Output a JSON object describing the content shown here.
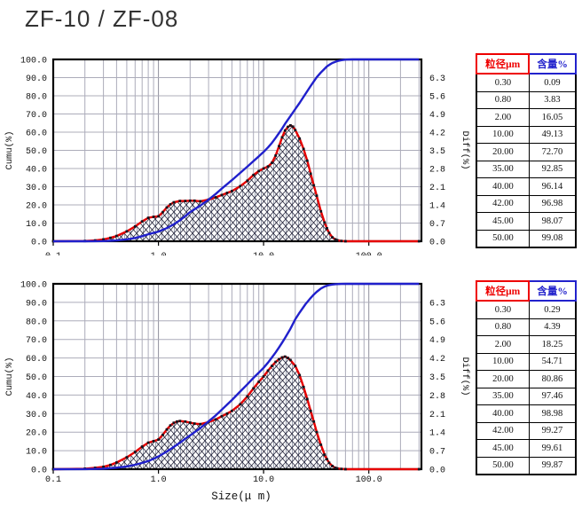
{
  "title": "ZF-10 / ZF-08",
  "shared_xlabel": "Size(μ m)",
  "chart_data": [
    {
      "type": "line",
      "sample": "ZF-10",
      "ylabel_left": "Cumu(%)",
      "ylabel_right": "Diff(%)",
      "x_scale": "log",
      "x_range": [
        0.1,
        316
      ],
      "x_tick_labels": [
        "0.1",
        "1.0",
        "10.0",
        "100.0"
      ],
      "x_tick_values": [
        0.1,
        1,
        10,
        100
      ],
      "y_left_range": [
        0,
        100
      ],
      "y_left_ticks": [
        "100.0",
        "90.0",
        "80.0",
        "70.0",
        "60.0",
        "50.0",
        "40.0",
        "30.0",
        "20.0",
        "10.0",
        "0.0"
      ],
      "y_right_range": [
        0,
        7
      ],
      "y_right_ticks": [
        "6.3",
        "5.6",
        "4.9",
        "4.2",
        "3.5",
        "2.8",
        "2.1",
        "1.4",
        "0.7",
        "0.0"
      ],
      "grid": true,
      "series": [
        {
          "name": "Cumu(%)",
          "axis": "left",
          "color": "#2020cc",
          "points": [
            [
              0.1,
              0
            ],
            [
              0.2,
              0.02
            ],
            [
              0.25,
              0.05
            ],
            [
              0.3,
              0.09
            ],
            [
              0.4,
              0.45
            ],
            [
              0.5,
              1.0
            ],
            [
              0.6,
              1.8
            ],
            [
              0.7,
              2.8
            ],
            [
              0.8,
              3.83
            ],
            [
              0.9,
              4.6
            ],
            [
              1.0,
              5.3
            ],
            [
              1.2,
              7.2
            ],
            [
              1.4,
              9.3
            ],
            [
              1.6,
              11.5
            ],
            [
              1.8,
              13.8
            ],
            [
              2.0,
              16.05
            ],
            [
              2.5,
              19.6
            ],
            [
              3,
              22.9
            ],
            [
              3.5,
              26
            ],
            [
              4,
              29
            ],
            [
              5,
              33.6
            ],
            [
              6,
              37.6
            ],
            [
              7,
              41
            ],
            [
              8,
              44.1
            ],
            [
              9,
              46.7
            ],
            [
              10,
              49.13
            ],
            [
              11,
              51.6
            ],
            [
              12,
              54.1
            ],
            [
              13,
              56.9
            ],
            [
              14,
              59.5
            ],
            [
              15,
              62
            ],
            [
              16,
              64.6
            ],
            [
              18,
              68.9
            ],
            [
              20,
              72.7
            ],
            [
              22,
              76.1
            ],
            [
              25,
              81
            ],
            [
              28,
              85.4
            ],
            [
              30,
              87.9
            ],
            [
              32,
              90.2
            ],
            [
              35,
              92.85
            ],
            [
              38,
              94.9
            ],
            [
              40,
              96.14
            ],
            [
              42,
              96.98
            ],
            [
              45,
              98.07
            ],
            [
              48,
              98.7
            ],
            [
              50,
              99.08
            ],
            [
              55,
              99.6
            ],
            [
              60,
              99.9
            ],
            [
              70,
              100
            ],
            [
              300,
              100
            ]
          ]
        },
        {
          "name": "Diff(%)",
          "axis": "right",
          "color": "#e60000",
          "fill": "crosshatch",
          "points": [
            [
              0.1,
              0
            ],
            [
              0.2,
              0.01
            ],
            [
              0.25,
              0.03
            ],
            [
              0.3,
              0.07
            ],
            [
              0.35,
              0.13
            ],
            [
              0.4,
              0.2
            ],
            [
              0.5,
              0.38
            ],
            [
              0.6,
              0.57
            ],
            [
              0.7,
              0.76
            ],
            [
              0.8,
              0.9
            ],
            [
              0.9,
              0.94
            ],
            [
              1.0,
              0.96
            ],
            [
              1.1,
              1.12
            ],
            [
              1.2,
              1.3
            ],
            [
              1.3,
              1.42
            ],
            [
              1.4,
              1.5
            ],
            [
              1.6,
              1.55
            ],
            [
              1.8,
              1.55
            ],
            [
              2.0,
              1.56
            ],
            [
              2.2,
              1.56
            ],
            [
              2.5,
              1.54
            ],
            [
              3,
              1.6
            ],
            [
              3.5,
              1.69
            ],
            [
              4,
              1.78
            ],
            [
              4.5,
              1.86
            ],
            [
              5,
              1.93
            ],
            [
              6,
              2.12
            ],
            [
              7,
              2.33
            ],
            [
              8,
              2.55
            ],
            [
              9,
              2.7
            ],
            [
              10,
              2.8
            ],
            [
              11,
              2.88
            ],
            [
              12,
              3.02
            ],
            [
              13,
              3.3
            ],
            [
              14,
              3.66
            ],
            [
              15,
              4.0
            ],
            [
              16,
              4.26
            ],
            [
              17,
              4.4
            ],
            [
              18,
              4.46
            ],
            [
              19,
              4.41
            ],
            [
              20,
              4.28
            ],
            [
              22,
              3.95
            ],
            [
              24,
              3.55
            ],
            [
              26,
              3.1
            ],
            [
              28,
              2.6
            ],
            [
              30,
              2.15
            ],
            [
              32,
              1.75
            ],
            [
              35,
              1.15
            ],
            [
              38,
              0.72
            ],
            [
              40,
              0.5
            ],
            [
              42,
              0.32
            ],
            [
              45,
              0.15
            ],
            [
              48,
              0.07
            ],
            [
              50,
              0.04
            ],
            [
              55,
              0.01
            ],
            [
              60,
              0
            ],
            [
              300,
              0
            ]
          ]
        }
      ],
      "table": {
        "headers": [
          "粒径μm",
          "含量%"
        ],
        "header_colors": [
          "#ee0000",
          "#2222cc"
        ],
        "rows": [
          [
            "0.30",
            "0.09"
          ],
          [
            "0.80",
            "3.83"
          ],
          [
            "2.00",
            "16.05"
          ],
          [
            "10.00",
            "49.13"
          ],
          [
            "20.00",
            "72.70"
          ],
          [
            "35.00",
            "92.85"
          ],
          [
            "40.00",
            "96.14"
          ],
          [
            "42.00",
            "96.98"
          ],
          [
            "45.00",
            "98.07"
          ],
          [
            "50.00",
            "99.08"
          ]
        ]
      }
    },
    {
      "type": "line",
      "sample": "ZF-08",
      "ylabel_left": "Cumu(%)",
      "ylabel_right": "Diff(%)",
      "xlabel": "Size(μ m)",
      "x_scale": "log",
      "x_range": [
        0.1,
        316
      ],
      "x_tick_labels": [
        "0.1",
        "1.0",
        "10.0",
        "100.0"
      ],
      "x_tick_values": [
        0.1,
        1,
        10,
        100
      ],
      "y_left_range": [
        0,
        100
      ],
      "y_left_ticks": [
        "100.0",
        "90.0",
        "80.0",
        "70.0",
        "60.0",
        "50.0",
        "40.0",
        "30.0",
        "20.0",
        "10.0",
        "0.0"
      ],
      "y_right_range": [
        0,
        7
      ],
      "y_right_ticks": [
        "6.3",
        "5.6",
        "4.9",
        "4.2",
        "3.5",
        "2.8",
        "2.1",
        "1.4",
        "0.7",
        "0.0"
      ],
      "grid": true,
      "series": [
        {
          "name": "Cumu(%)",
          "axis": "left",
          "color": "#2020cc",
          "points": [
            [
              0.1,
              0
            ],
            [
              0.2,
              0.03
            ],
            [
              0.25,
              0.12
            ],
            [
              0.3,
              0.29
            ],
            [
              0.4,
              0.8
            ],
            [
              0.5,
              1.5
            ],
            [
              0.6,
              2.4
            ],
            [
              0.7,
              3.4
            ],
            [
              0.8,
              4.39
            ],
            [
              0.9,
              5.6
            ],
            [
              1.0,
              6.9
            ],
            [
              1.2,
              9.5
            ],
            [
              1.4,
              12
            ],
            [
              1.6,
              14.3
            ],
            [
              1.8,
              16.4
            ],
            [
              2.0,
              18.25
            ],
            [
              2.5,
              22.2
            ],
            [
              3,
              25.8
            ],
            [
              3.5,
              29
            ],
            [
              4,
              32.1
            ],
            [
              5,
              37.3
            ],
            [
              6,
              41.9
            ],
            [
              7,
              45.8
            ],
            [
              8,
              49.3
            ],
            [
              9,
              52.1
            ],
            [
              10,
              54.71
            ],
            [
              11,
              57.5
            ],
            [
              12,
              60.3
            ],
            [
              13,
              63
            ],
            [
              14,
              65.7
            ],
            [
              15,
              68.3
            ],
            [
              16,
              70.8
            ],
            [
              18,
              75.8
            ],
            [
              20,
              80.86
            ],
            [
              22,
              84.5
            ],
            [
              25,
              89
            ],
            [
              28,
              92.4
            ],
            [
              30,
              94.2
            ],
            [
              32,
              95.7
            ],
            [
              35,
              97.46
            ],
            [
              38,
              98.5
            ],
            [
              40,
              98.98
            ],
            [
              42,
              99.27
            ],
            [
              45,
              99.61
            ],
            [
              48,
              99.8
            ],
            [
              50,
              99.87
            ],
            [
              55,
              99.95
            ],
            [
              60,
              100
            ],
            [
              300,
              100
            ]
          ]
        },
        {
          "name": "Diff(%)",
          "axis": "right",
          "color": "#e60000",
          "fill": "crosshatch",
          "points": [
            [
              0.1,
              0
            ],
            [
              0.2,
              0.02
            ],
            [
              0.25,
              0.05
            ],
            [
              0.3,
              0.09
            ],
            [
              0.35,
              0.16
            ],
            [
              0.4,
              0.25
            ],
            [
              0.5,
              0.45
            ],
            [
              0.6,
              0.65
            ],
            [
              0.7,
              0.85
            ],
            [
              0.8,
              1.0
            ],
            [
              0.9,
              1.06
            ],
            [
              1.0,
              1.12
            ],
            [
              1.1,
              1.3
            ],
            [
              1.2,
              1.5
            ],
            [
              1.3,
              1.65
            ],
            [
              1.4,
              1.75
            ],
            [
              1.5,
              1.8
            ],
            [
              1.6,
              1.82
            ],
            [
              1.8,
              1.8
            ],
            [
              2.0,
              1.76
            ],
            [
              2.2,
              1.72
            ],
            [
              2.5,
              1.7
            ],
            [
              3,
              1.78
            ],
            [
              3.5,
              1.88
            ],
            [
              4,
              2.0
            ],
            [
              4.5,
              2.1
            ],
            [
              5,
              2.2
            ],
            [
              6,
              2.45
            ],
            [
              7,
              2.75
            ],
            [
              8,
              3.05
            ],
            [
              9,
              3.3
            ],
            [
              10,
              3.5
            ],
            [
              11,
              3.72
            ],
            [
              12,
              3.9
            ],
            [
              13,
              4.05
            ],
            [
              14,
              4.15
            ],
            [
              15,
              4.22
            ],
            [
              16,
              4.25
            ],
            [
              17,
              4.2
            ],
            [
              18,
              4.12
            ],
            [
              20,
              3.9
            ],
            [
              22,
              3.55
            ],
            [
              24,
              3.1
            ],
            [
              26,
              2.65
            ],
            [
              28,
              2.2
            ],
            [
              30,
              1.8
            ],
            [
              32,
              1.4
            ],
            [
              35,
              0.92
            ],
            [
              38,
              0.55
            ],
            [
              40,
              0.38
            ],
            [
              42,
              0.24
            ],
            [
              45,
              0.12
            ],
            [
              48,
              0.05
            ],
            [
              50,
              0.03
            ],
            [
              55,
              0.01
            ],
            [
              60,
              0
            ],
            [
              300,
              0
            ]
          ]
        }
      ],
      "table": {
        "headers": [
          "粒径μm",
          "含量%"
        ],
        "header_colors": [
          "#ee0000",
          "#2222cc"
        ],
        "rows": [
          [
            "0.30",
            "0.29"
          ],
          [
            "0.80",
            "4.39"
          ],
          [
            "2.00",
            "18.25"
          ],
          [
            "10.00",
            "54.71"
          ],
          [
            "20.00",
            "80.86"
          ],
          [
            "35.00",
            "97.46"
          ],
          [
            "40.00",
            "98.98"
          ],
          [
            "42.00",
            "99.27"
          ],
          [
            "45.00",
            "99.61"
          ],
          [
            "50.00",
            "99.87"
          ]
        ]
      }
    }
  ]
}
